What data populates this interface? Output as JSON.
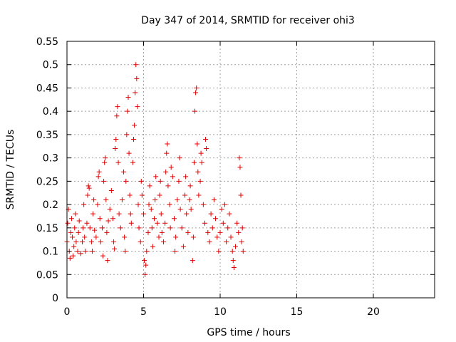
{
  "chart_data": {
    "type": "scatter",
    "title": "Day 347 of 2014, SRMTID for receiver ohi3",
    "xlabel": "GPS time / hours",
    "ylabel": "SRMTID / TECUs",
    "xlim": [
      0,
      24
    ],
    "ylim": [
      0,
      0.55
    ],
    "xticks": [
      0,
      5,
      10,
      15,
      20
    ],
    "xtick_labels": [
      "0",
      "5",
      "10",
      "15",
      "20"
    ],
    "yticks": [
      0,
      0.05,
      0.1,
      0.15,
      0.2,
      0.25,
      0.3,
      0.35,
      0.4,
      0.45,
      0.5,
      0.55
    ],
    "ytick_labels": [
      "0",
      "0.05",
      "0.1",
      "0.15",
      "0.2",
      "0.25",
      "0.3",
      "0.35",
      "0.4",
      "0.45",
      "0.5",
      "0.55"
    ],
    "grid": true,
    "marker": "+",
    "color": "#e00000",
    "series": [
      {
        "name": "SRMTID",
        "points": [
          [
            0.0,
            0.12
          ],
          [
            0.05,
            0.16
          ],
          [
            0.1,
            0.19
          ],
          [
            0.15,
            0.1
          ],
          [
            0.2,
            0.085
          ],
          [
            0.25,
            0.14
          ],
          [
            0.3,
            0.17
          ],
          [
            0.35,
            0.13
          ],
          [
            0.4,
            0.09
          ],
          [
            0.45,
            0.11
          ],
          [
            0.5,
            0.15
          ],
          [
            0.55,
            0.18
          ],
          [
            0.6,
            0.12
          ],
          [
            0.7,
            0.1
          ],
          [
            0.75,
            0.14
          ],
          [
            0.8,
            0.165
          ],
          [
            0.9,
            0.095
          ],
          [
            1.0,
            0.12
          ],
          [
            1.05,
            0.15
          ],
          [
            1.1,
            0.2
          ],
          [
            1.15,
            0.13
          ],
          [
            1.2,
            0.1
          ],
          [
            1.3,
            0.16
          ],
          [
            1.35,
            0.22
          ],
          [
            1.4,
            0.24
          ],
          [
            1.45,
            0.235
          ],
          [
            1.5,
            0.15
          ],
          [
            1.6,
            0.12
          ],
          [
            1.65,
            0.1
          ],
          [
            1.7,
            0.18
          ],
          [
            1.75,
            0.21
          ],
          [
            1.8,
            0.145
          ],
          [
            1.9,
            0.13
          ],
          [
            2.0,
            0.2
          ],
          [
            2.05,
            0.26
          ],
          [
            2.1,
            0.27
          ],
          [
            2.15,
            0.17
          ],
          [
            2.2,
            0.12
          ],
          [
            2.3,
            0.15
          ],
          [
            2.35,
            0.09
          ],
          [
            2.4,
            0.25
          ],
          [
            2.45,
            0.29
          ],
          [
            2.5,
            0.3
          ],
          [
            2.55,
            0.21
          ],
          [
            2.6,
            0.14
          ],
          [
            2.65,
            0.08
          ],
          [
            2.7,
            0.165
          ],
          [
            2.8,
            0.19
          ],
          [
            2.9,
            0.23
          ],
          [
            3.0,
            0.17
          ],
          [
            3.05,
            0.12
          ],
          [
            3.1,
            0.105
          ],
          [
            3.15,
            0.32
          ],
          [
            3.2,
            0.34
          ],
          [
            3.25,
            0.39
          ],
          [
            3.3,
            0.41
          ],
          [
            3.35,
            0.29
          ],
          [
            3.4,
            0.18
          ],
          [
            3.5,
            0.15
          ],
          [
            3.6,
            0.21
          ],
          [
            3.7,
            0.27
          ],
          [
            3.75,
            0.13
          ],
          [
            3.8,
            0.1
          ],
          [
            3.85,
            0.25
          ],
          [
            3.9,
            0.35
          ],
          [
            3.95,
            0.4
          ],
          [
            4.0,
            0.43
          ],
          [
            4.05,
            0.31
          ],
          [
            4.1,
            0.22
          ],
          [
            4.15,
            0.18
          ],
          [
            4.2,
            0.16
          ],
          [
            4.3,
            0.29
          ],
          [
            4.35,
            0.34
          ],
          [
            4.4,
            0.37
          ],
          [
            4.45,
            0.44
          ],
          [
            4.5,
            0.5
          ],
          [
            4.55,
            0.47
          ],
          [
            4.6,
            0.41
          ],
          [
            4.65,
            0.2
          ],
          [
            4.7,
            0.15
          ],
          [
            4.8,
            0.12
          ],
          [
            4.85,
            0.25
          ],
          [
            4.9,
            0.22
          ],
          [
            5.0,
            0.18
          ],
          [
            5.05,
            0.08
          ],
          [
            5.1,
            0.05
          ],
          [
            5.15,
            0.07
          ],
          [
            5.2,
            0.1
          ],
          [
            5.3,
            0.14
          ],
          [
            5.35,
            0.2
          ],
          [
            5.4,
            0.24
          ],
          [
            5.5,
            0.19
          ],
          [
            5.55,
            0.15
          ],
          [
            5.6,
            0.11
          ],
          [
            5.7,
            0.17
          ],
          [
            5.75,
            0.21
          ],
          [
            5.8,
            0.26
          ],
          [
            5.9,
            0.16
          ],
          [
            6.0,
            0.13
          ],
          [
            6.05,
            0.22
          ],
          [
            6.1,
            0.25
          ],
          [
            6.15,
            0.18
          ],
          [
            6.2,
            0.14
          ],
          [
            6.3,
            0.12
          ],
          [
            6.4,
            0.16
          ],
          [
            6.45,
            0.27
          ],
          [
            6.5,
            0.31
          ],
          [
            6.55,
            0.33
          ],
          [
            6.6,
            0.24
          ],
          [
            6.7,
            0.2
          ],
          [
            6.75,
            0.15
          ],
          [
            6.8,
            0.28
          ],
          [
            6.9,
            0.26
          ],
          [
            7.0,
            0.17
          ],
          [
            7.05,
            0.1
          ],
          [
            7.1,
            0.13
          ],
          [
            7.2,
            0.21
          ],
          [
            7.3,
            0.25
          ],
          [
            7.35,
            0.3
          ],
          [
            7.4,
            0.19
          ],
          [
            7.5,
            0.15
          ],
          [
            7.6,
            0.11
          ],
          [
            7.7,
            0.22
          ],
          [
            7.75,
            0.26
          ],
          [
            7.8,
            0.18
          ],
          [
            7.9,
            0.14
          ],
          [
            8.0,
            0.21
          ],
          [
            8.05,
            0.24
          ],
          [
            8.1,
            0.19
          ],
          [
            8.2,
            0.08
          ],
          [
            8.25,
            0.13
          ],
          [
            8.3,
            0.29
          ],
          [
            8.35,
            0.4
          ],
          [
            8.4,
            0.44
          ],
          [
            8.45,
            0.45
          ],
          [
            8.5,
            0.33
          ],
          [
            8.55,
            0.27
          ],
          [
            8.6,
            0.22
          ],
          [
            8.7,
            0.25
          ],
          [
            8.75,
            0.31
          ],
          [
            8.8,
            0.29
          ],
          [
            8.9,
            0.2
          ],
          [
            9.0,
            0.16
          ],
          [
            9.05,
            0.34
          ],
          [
            9.1,
            0.32
          ],
          [
            9.2,
            0.14
          ],
          [
            9.3,
            0.12
          ],
          [
            9.4,
            0.18
          ],
          [
            9.5,
            0.15
          ],
          [
            9.6,
            0.21
          ],
          [
            9.7,
            0.17
          ],
          [
            9.8,
            0.13
          ],
          [
            9.9,
            0.1
          ],
          [
            10.0,
            0.14
          ],
          [
            10.1,
            0.19
          ],
          [
            10.2,
            0.16
          ],
          [
            10.3,
            0.2
          ],
          [
            10.4,
            0.12
          ],
          [
            10.5,
            0.15
          ],
          [
            10.6,
            0.18
          ],
          [
            10.7,
            0.13
          ],
          [
            10.8,
            0.1
          ],
          [
            10.85,
            0.08
          ],
          [
            10.9,
            0.065
          ],
          [
            11.0,
            0.11
          ],
          [
            11.1,
            0.16
          ],
          [
            11.2,
            0.14
          ],
          [
            11.25,
            0.3
          ],
          [
            11.3,
            0.28
          ],
          [
            11.35,
            0.22
          ],
          [
            11.4,
            0.12
          ],
          [
            11.45,
            0.15
          ],
          [
            11.5,
            0.1
          ]
        ]
      }
    ]
  }
}
